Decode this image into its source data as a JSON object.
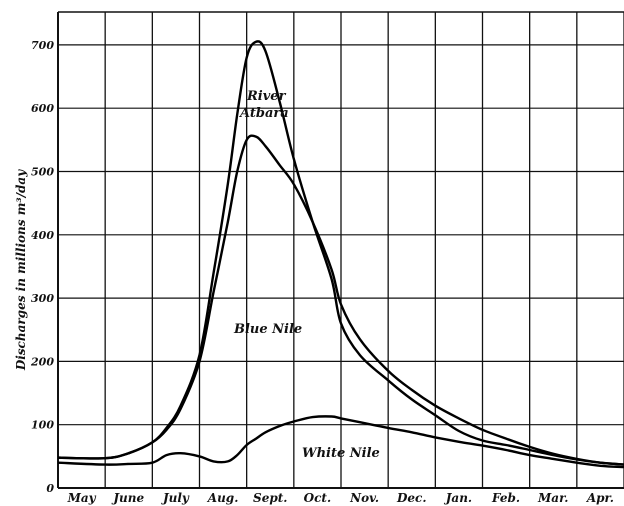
{
  "chart_data": {
    "type": "line",
    "ylabel": "Discharges in millions m³/day",
    "xlabel": "",
    "title": "",
    "categories": [
      "May",
      "June",
      "July",
      "Aug.",
      "Sept.",
      "Oct.",
      "Nov.",
      "Dec.",
      "Jan.",
      "Feb.",
      "Mar.",
      "Apr."
    ],
    "ylim": [
      0,
      750
    ],
    "yticks": [
      0,
      100,
      200,
      300,
      400,
      500,
      600,
      700
    ],
    "grid": true,
    "series": [
      {
        "name": "River Atbara",
        "color": "#000000",
        "x": [
          0,
          1,
          1.5,
          2,
          2.3,
          2.6,
          3,
          3.3,
          3.6,
          3.8,
          4,
          4.2,
          4.4,
          4.7,
          5,
          5.4,
          5.8,
          6,
          6.4,
          7,
          7.5,
          8,
          8.5,
          9,
          9.5,
          10,
          10.5,
          11,
          11.5,
          12
        ],
        "y": [
          48,
          47,
          55,
          72,
          95,
          130,
          210,
          340,
          480,
          590,
          680,
          705,
          690,
          610,
          520,
          420,
          330,
          260,
          210,
          170,
          140,
          115,
          90,
          75,
          68,
          60,
          52,
          45,
          40,
          37
        ]
      },
      {
        "name": "Blue Nile",
        "color": "#000000",
        "x": [
          0,
          1,
          1.5,
          2,
          2.3,
          2.6,
          3,
          3.3,
          3.6,
          3.8,
          4,
          4.2,
          4.4,
          4.7,
          5,
          5.4,
          5.8,
          6,
          6.4,
          7,
          7.5,
          8,
          8.5,
          9,
          9.5,
          10,
          10.5,
          11,
          11.5,
          12
        ],
        "y": [
          48,
          47,
          55,
          72,
          92,
          125,
          200,
          310,
          420,
          500,
          550,
          555,
          540,
          510,
          480,
          420,
          345,
          290,
          235,
          185,
          155,
          130,
          110,
          92,
          78,
          65,
          54,
          46,
          40,
          37
        ]
      },
      {
        "name": "White Nile",
        "color": "#000000",
        "x": [
          0,
          1,
          1.5,
          2,
          2.3,
          2.6,
          3,
          3.3,
          3.6,
          3.8,
          4,
          4.2,
          4.4,
          4.7,
          5,
          5.4,
          5.8,
          6,
          6.4,
          7,
          7.5,
          8,
          8.5,
          9,
          9.5,
          10,
          10.5,
          11,
          11.5,
          12
        ],
        "y": [
          40,
          37,
          38,
          40,
          52,
          55,
          50,
          42,
          42,
          52,
          68,
          78,
          88,
          98,
          105,
          112,
          113,
          110,
          104,
          95,
          88,
          80,
          73,
          67,
          60,
          52,
          46,
          40,
          35,
          33
        ]
      }
    ],
    "annotations": {
      "river_atbara": [
        "River",
        "Atbara"
      ],
      "blue_nile": "Blue Nile",
      "white_nile": "White Nile"
    }
  }
}
